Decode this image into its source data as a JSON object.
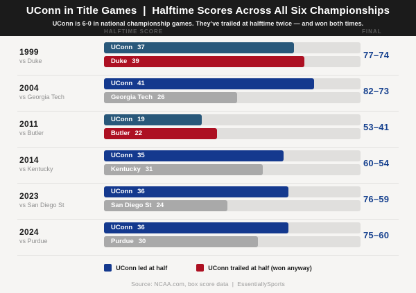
{
  "header": {
    "title": "UConn in Title Games  |  Halftime Scores Across All Six Championships",
    "subtitle": "UConn is 6-0 in national championship games. They’ve trailed at halftime twice — and won both times.",
    "col_halftime": "HALFTIME SCORE",
    "col_final": "FINAL"
  },
  "colors": {
    "header_bg": "#1b1b1b",
    "page_bg": "#f6f5f3",
    "uconn_led_navy": "#14398e",
    "uconn_trailed_steel": "#29587a",
    "opponent_led_red": "#ad1022",
    "opponent_gray": "#a9a9a9",
    "track_gray": "#e0dfdd",
    "final_score_blue": "#16418f"
  },
  "chart_data": {
    "type": "bar",
    "orientation": "horizontal",
    "value_axis_max": 50,
    "grid": false,
    "legend_position": "bottom",
    "rows": [
      {
        "year": "1999",
        "opponent": "vs Duke",
        "final": "77–74",
        "uconn": {
          "label": "UConn",
          "value": 37,
          "color": "#29587a"
        },
        "opp": {
          "label": "Duke",
          "value": 39,
          "color": "#ad1022"
        }
      },
      {
        "year": "2004",
        "opponent": "vs Georgia Tech",
        "final": "82–73",
        "uconn": {
          "label": "UConn",
          "value": 41,
          "color": "#14398e"
        },
        "opp": {
          "label": "Georgia Tech",
          "value": 26,
          "color": "#a9a9a9"
        }
      },
      {
        "year": "2011",
        "opponent": "vs Butler",
        "final": "53–41",
        "uconn": {
          "label": "UConn",
          "value": 19,
          "color": "#29587a"
        },
        "opp": {
          "label": "Butler",
          "value": 22,
          "color": "#ad1022"
        }
      },
      {
        "year": "2014",
        "opponent": "vs Kentucky",
        "final": "60–54",
        "uconn": {
          "label": "UConn",
          "value": 35,
          "color": "#14398e"
        },
        "opp": {
          "label": "Kentucky",
          "value": 31,
          "color": "#a9a9a9"
        }
      },
      {
        "year": "2023",
        "opponent": "vs San Diego St",
        "final": "76–59",
        "uconn": {
          "label": "UConn",
          "value": 36,
          "color": "#14398e"
        },
        "opp": {
          "label": "San Diego St",
          "value": 24,
          "color": "#a9a9a9"
        }
      },
      {
        "year": "2024",
        "opponent": "vs Purdue",
        "final": "75–60",
        "uconn": {
          "label": "UConn",
          "value": 36,
          "color": "#14398e"
        },
        "opp": {
          "label": "Purdue",
          "value": 30,
          "color": "#a9a9a9"
        }
      }
    ],
    "legend": [
      {
        "label": "UConn led at half",
        "color": "#14398e"
      },
      {
        "label": "UConn trailed at half (won anyway)",
        "color": "#ad1022"
      }
    ]
  },
  "footer": {
    "source": "Source: NCAA.com, box score data  |  EssentiallySports"
  }
}
